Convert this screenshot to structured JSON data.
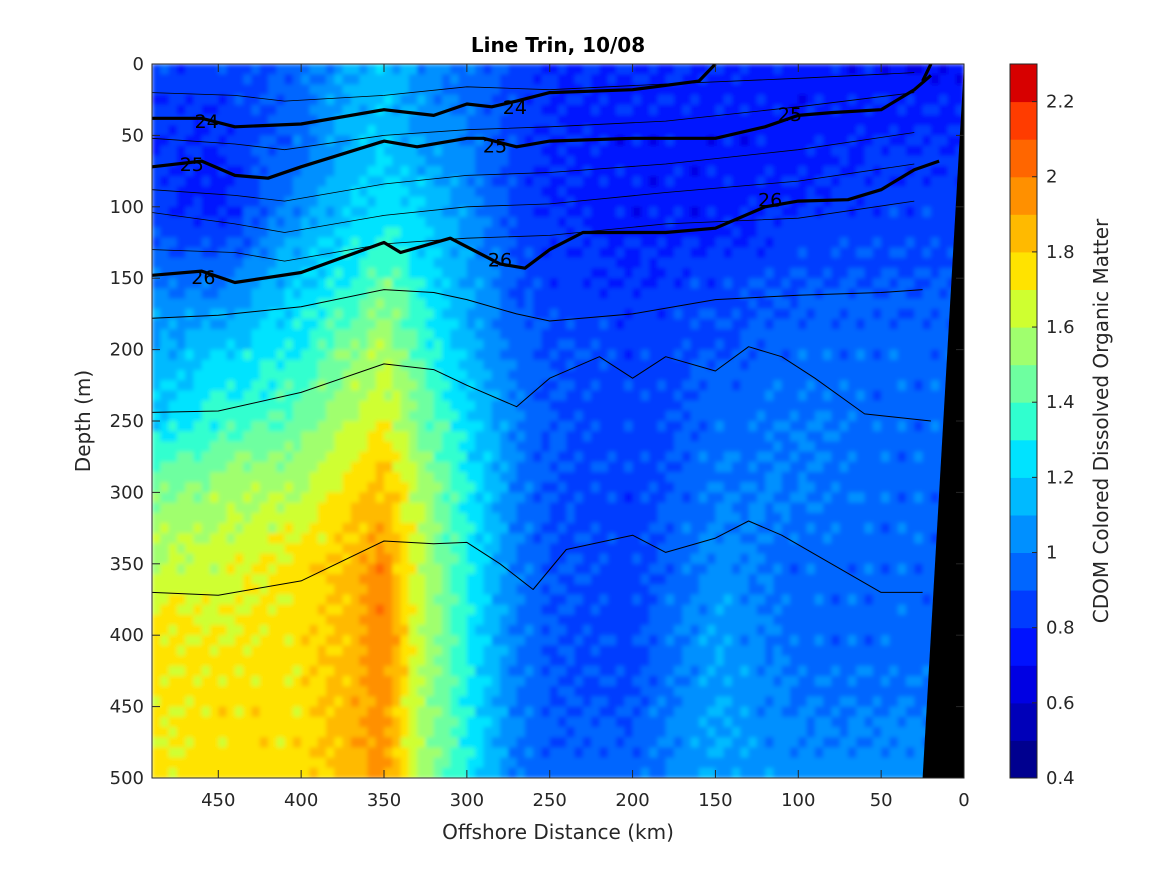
{
  "chart_data": {
    "type": "heatmap",
    "title": "Line Trin, 10/08",
    "xlabel": "Offshore Distance (km)",
    "ylabel": "Depth (m)",
    "xlim": [
      490,
      0
    ],
    "ylim": [
      0,
      500
    ],
    "x_ticks": [
      450,
      400,
      350,
      300,
      250,
      200,
      150,
      100,
      50,
      0
    ],
    "y_ticks": [
      0,
      50,
      100,
      150,
      200,
      250,
      300,
      350,
      400,
      450,
      500
    ],
    "colorbar": {
      "label": "CDOM Colored Dissolved Organic Matter",
      "range": [
        0.4,
        2.3
      ],
      "ticks": [
        0.4,
        0.6,
        0.8,
        1,
        1.2,
        1.4,
        1.6,
        1.8,
        2,
        2.2
      ],
      "levels": [
        0.4,
        0.5,
        0.6,
        0.7,
        0.8,
        0.9,
        1.0,
        1.1,
        1.2,
        1.3,
        1.4,
        1.5,
        1.6,
        1.7,
        1.8,
        1.9,
        2.0,
        2.1,
        2.2,
        2.3
      ],
      "colors": [
        "#00008f",
        "#0000b9",
        "#0000e3",
        "#0012ff",
        "#003cff",
        "#0066ff",
        "#0090ff",
        "#00baff",
        "#00e3ff",
        "#30ffcf",
        "#6effa0",
        "#a0ff6e",
        "#cfff30",
        "#ffe300",
        "#ffba00",
        "#ff9000",
        "#ff6600",
        "#ff3c00",
        "#d70000"
      ],
      "colormap": "jet"
    },
    "field_description_x_km": [
      490,
      450,
      400,
      370,
      350,
      330,
      300,
      270,
      250,
      200,
      150,
      100,
      50,
      0
    ],
    "field_rows": {
      "depths_m": [
        0,
        50,
        100,
        150,
        200,
        250,
        300,
        350,
        400,
        450,
        500
      ],
      "values": [
        [
          0.85,
          0.85,
          0.95,
          1.1,
          1.15,
          1.05,
          0.95,
          0.85,
          0.8,
          0.8,
          0.8,
          0.75,
          0.75,
          0.7
        ],
        [
          0.8,
          0.8,
          0.95,
          1.15,
          1.2,
          1.1,
          1.0,
          0.85,
          0.8,
          0.75,
          0.75,
          0.75,
          0.8,
          0.8
        ],
        [
          0.85,
          0.75,
          1.05,
          1.2,
          1.25,
          1.2,
          1.05,
          0.85,
          0.8,
          0.75,
          0.75,
          0.8,
          0.85,
          0.85
        ],
        [
          1.0,
          0.95,
          1.2,
          1.3,
          1.45,
          1.3,
          1.1,
          0.9,
          0.85,
          0.8,
          0.85,
          0.9,
          0.9,
          0.9
        ],
        [
          1.1,
          1.2,
          1.3,
          1.5,
          1.6,
          1.4,
          1.15,
          0.95,
          0.9,
          0.85,
          0.9,
          0.95,
          0.95,
          0.95
        ],
        [
          1.2,
          1.35,
          1.45,
          1.6,
          1.7,
          1.5,
          1.25,
          1.0,
          0.9,
          0.85,
          0.95,
          1.0,
          0.95,
          0.95
        ],
        [
          1.5,
          1.55,
          1.6,
          1.75,
          1.85,
          1.6,
          1.3,
          1.0,
          0.9,
          0.85,
          1.0,
          1.0,
          0.95,
          0.95
        ],
        [
          1.6,
          1.65,
          1.75,
          1.85,
          1.95,
          1.65,
          1.3,
          1.0,
          0.9,
          0.85,
          1.05,
          0.95,
          0.95,
          0.95
        ],
        [
          1.75,
          1.7,
          1.75,
          1.85,
          2.0,
          1.65,
          1.3,
          1.0,
          0.9,
          0.85,
          1.1,
          0.95,
          0.95,
          0.95
        ],
        [
          1.7,
          1.75,
          1.75,
          1.85,
          1.95,
          1.6,
          1.3,
          1.0,
          0.9,
          0.9,
          1.1,
          1.0,
          1.0,
          1.0
        ],
        [
          1.7,
          1.75,
          1.75,
          1.85,
          1.95,
          1.6,
          1.3,
          1.0,
          0.95,
          0.95,
          1.1,
          1.05,
          1.05,
          1.05
        ]
      ]
    },
    "contours": [
      {
        "label": "24",
        "bold": true,
        "x": [
          490,
          460,
          440,
          400,
          350,
          320,
          300,
          285,
          270,
          250,
          200,
          160,
          150
        ],
        "y": [
          38,
          38,
          44,
          42,
          32,
          36,
          28,
          30,
          26,
          20,
          18,
          12,
          0
        ]
      },
      {
        "label": "",
        "bold": true,
        "x": [
          25,
          20
        ],
        "y": [
          12,
          0
        ]
      },
      {
        "label": "25",
        "bold": true,
        "x": [
          490,
          460,
          440,
          420,
          400,
          350,
          330,
          300,
          290,
          270,
          250,
          200,
          150,
          120,
          100,
          80,
          50,
          30,
          20
        ],
        "y": [
          72,
          68,
          78,
          80,
          72,
          54,
          58,
          52,
          52,
          58,
          54,
          52,
          52,
          44,
          36,
          34,
          32,
          18,
          8
        ]
      },
      {
        "label": "26",
        "bold": true,
        "x": [
          490,
          460,
          440,
          400,
          350,
          340,
          310,
          300,
          280,
          265,
          250,
          230,
          200,
          180,
          150,
          120,
          100,
          70,
          50,
          30,
          15
        ],
        "y": [
          148,
          145,
          153,
          146,
          125,
          132,
          122,
          128,
          140,
          143,
          130,
          118,
          118,
          118,
          115,
          100,
          96,
          95,
          88,
          74,
          68
        ]
      },
      {
        "label": "",
        "bold": false,
        "x": [
          490,
          450,
          400,
          350,
          320,
          300,
          270,
          250,
          200,
          150,
          100,
          50,
          25
        ],
        "y": [
          178,
          176,
          170,
          158,
          160,
          165,
          175,
          180,
          175,
          165,
          162,
          160,
          158
        ]
      },
      {
        "label": "",
        "bold": false,
        "x": [
          490,
          450,
          400,
          350,
          320,
          300,
          270,
          250,
          220,
          200,
          180,
          150,
          130,
          110,
          90,
          60,
          20
        ],
        "y": [
          244,
          243,
          230,
          210,
          214,
          225,
          240,
          220,
          205,
          220,
          205,
          215,
          198,
          205,
          220,
          245,
          250
        ]
      },
      {
        "label": "",
        "bold": false,
        "x": [
          490,
          450,
          400,
          350,
          320,
          300,
          280,
          260,
          240,
          200,
          180,
          150,
          130,
          110,
          80,
          50,
          25
        ],
        "y": [
          370,
          372,
          362,
          334,
          336,
          335,
          350,
          368,
          340,
          330,
          342,
          332,
          320,
          330,
          350,
          370,
          370
        ]
      }
    ],
    "contour_labels": [
      {
        "text": "24",
        "x": 457,
        "y": 40
      },
      {
        "text": "24",
        "x": 271,
        "y": 30
      },
      {
        "text": "25",
        "x": 466,
        "y": 70
      },
      {
        "text": "25",
        "x": 283,
        "y": 57
      },
      {
        "text": "25",
        "x": 105,
        "y": 35
      },
      {
        "text": "26",
        "x": 117,
        "y": 95
      },
      {
        "text": "26",
        "x": 459,
        "y": 149
      },
      {
        "text": "26",
        "x": 280,
        "y": 137
      }
    ],
    "bathymetry": {
      "x": [
        25,
        0,
        0
      ],
      "y": [
        500,
        0,
        500
      ]
    },
    "grid": false
  }
}
